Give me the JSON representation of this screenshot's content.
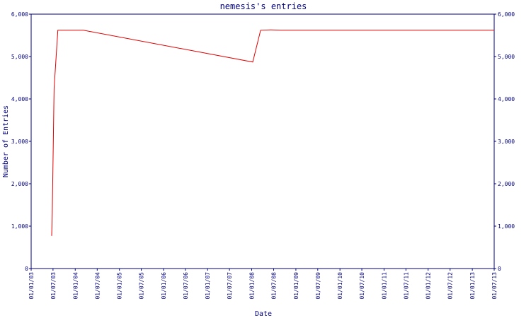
{
  "chart_data": {
    "type": "line",
    "title": "nemesis's entries",
    "x_label": "Date",
    "y_label": "Number of Entries",
    "x": [
      "2003-06-20",
      "2003-06-25",
      "2003-07-10",
      "2003-08-10",
      "2004-03-09",
      "2008-01-10",
      "2008-03-15",
      "2008-06-10",
      "2008-09-01",
      "2013-07-01"
    ],
    "series": [
      {
        "name": "entries",
        "color": "#e00000",
        "values": [
          770,
          1330,
          4250,
          5620,
          5620,
          4870,
          5620,
          5630,
          5620,
          5620
        ]
      }
    ],
    "xlim": [
      "2003-01-01",
      "2013-07-01"
    ],
    "xticks": [
      {
        "value": "2003-01-01",
        "label": "01/01/03"
      },
      {
        "value": "2003-07-01",
        "label": "01/07/03"
      },
      {
        "value": "2004-01-01",
        "label": "01/01/04"
      },
      {
        "value": "2004-07-01",
        "label": "01/07/04"
      },
      {
        "value": "2005-01-01",
        "label": "01/01/05"
      },
      {
        "value": "2005-07-01",
        "label": "01/07/05"
      },
      {
        "value": "2006-01-01",
        "label": "01/01/06"
      },
      {
        "value": "2006-07-01",
        "label": "01/07/06"
      },
      {
        "value": "2007-01-01",
        "label": "01/01/07"
      },
      {
        "value": "2007-07-01",
        "label": "01/07/07"
      },
      {
        "value": "2008-01-01",
        "label": "01/01/08"
      },
      {
        "value": "2008-07-01",
        "label": "01/07/08"
      },
      {
        "value": "2009-01-01",
        "label": "01/01/09"
      },
      {
        "value": "2009-07-01",
        "label": "01/07/09"
      },
      {
        "value": "2010-01-01",
        "label": "01/01/10"
      },
      {
        "value": "2010-07-01",
        "label": "01/07/10"
      },
      {
        "value": "2011-01-01",
        "label": "01/01/11"
      },
      {
        "value": "2011-07-01",
        "label": "01/07/11"
      },
      {
        "value": "2012-01-01",
        "label": "01/01/12"
      },
      {
        "value": "2012-07-01",
        "label": "01/07/12"
      },
      {
        "value": "2013-01-01",
        "label": "01/01/13"
      },
      {
        "value": "2013-07-01",
        "label": "01/07/13"
      }
    ],
    "ylim": [
      0,
      6000
    ],
    "yticks": [
      0,
      {
        "value": 1000,
        "label": "1,000"
      },
      {
        "value": 2000,
        "label": "2,000"
      },
      {
        "value": 3000,
        "label": "3,000"
      },
      {
        "value": 4000,
        "label": "4,000"
      },
      {
        "value": 5000,
        "label": "5,000"
      },
      {
        "value": 6000,
        "label": "6,000"
      }
    ],
    "y2lim": [
      0,
      6000
    ],
    "y2ticks": [
      0,
      {
        "value": 1000,
        "label": "1,000"
      },
      {
        "value": 2000,
        "label": "2,000"
      },
      {
        "value": 3000,
        "label": "3,000"
      },
      {
        "value": 4000,
        "label": "4,000"
      },
      {
        "value": 5000,
        "label": "5,000"
      },
      {
        "value": 6000,
        "label": "6,000"
      }
    ],
    "axis_color": "#000080"
  }
}
